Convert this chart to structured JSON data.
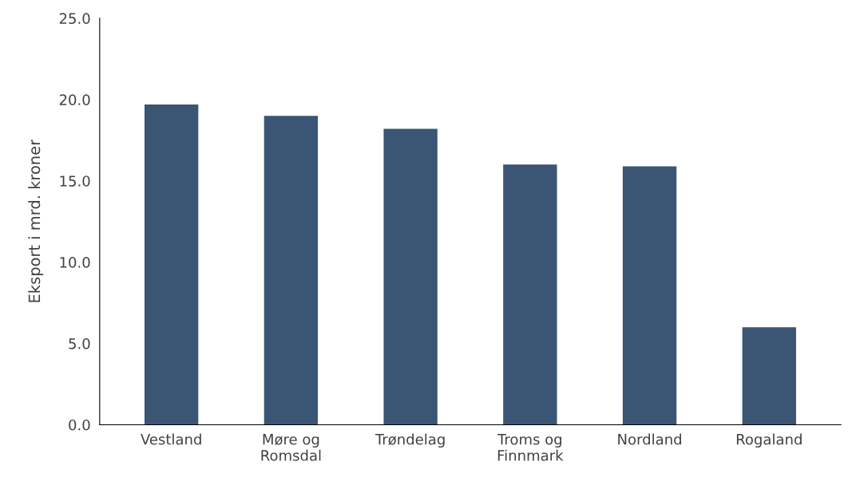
{
  "chart_data": {
    "type": "bar",
    "ylabel": "Eksport i mrd. kroner",
    "categories": [
      "Vestland",
      "Møre og\nRomsdal",
      "Trøndelag",
      "Troms og\nFinnmark",
      "Nordland",
      "Rogaland"
    ],
    "values": [
      19.7,
      19.0,
      18.2,
      16.0,
      15.9,
      6.0
    ],
    "color": "#3a5674",
    "ylim": [
      0,
      25
    ],
    "yticks": [
      {
        "value": 0,
        "label": "0.0"
      },
      {
        "value": 5,
        "label": "5.0"
      },
      {
        "value": 10,
        "label": "10.0"
      },
      {
        "value": 15,
        "label": "15.0"
      },
      {
        "value": 20,
        "label": "20.0"
      },
      {
        "value": 25,
        "label": "25.0"
      }
    ],
    "grid": false
  }
}
